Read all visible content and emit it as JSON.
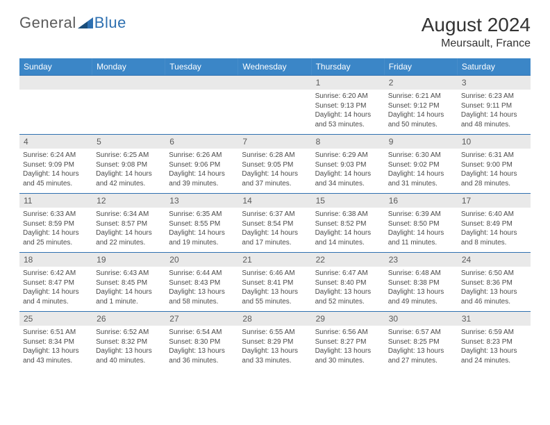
{
  "logo": {
    "general": "General",
    "blue": "Blue"
  },
  "title": "August 2024",
  "location": "Meursault, France",
  "colors": {
    "header_bg": "#3b86c7",
    "header_text": "#ffffff",
    "daynum_bg": "#e9e9e9",
    "daynum_text": "#5a5a5a",
    "border": "#2d6fb0",
    "body_text": "#4a4a4a",
    "logo_general": "#5a5a5a",
    "logo_blue": "#2d6fb0"
  },
  "weekdays": [
    "Sunday",
    "Monday",
    "Tuesday",
    "Wednesday",
    "Thursday",
    "Friday",
    "Saturday"
  ],
  "cells": [
    {
      "day": "",
      "sunrise": "",
      "sunset": "",
      "daylight": ""
    },
    {
      "day": "",
      "sunrise": "",
      "sunset": "",
      "daylight": ""
    },
    {
      "day": "",
      "sunrise": "",
      "sunset": "",
      "daylight": ""
    },
    {
      "day": "",
      "sunrise": "",
      "sunset": "",
      "daylight": ""
    },
    {
      "day": "1",
      "sunrise": "Sunrise: 6:20 AM",
      "sunset": "Sunset: 9:13 PM",
      "daylight": "Daylight: 14 hours and 53 minutes."
    },
    {
      "day": "2",
      "sunrise": "Sunrise: 6:21 AM",
      "sunset": "Sunset: 9:12 PM",
      "daylight": "Daylight: 14 hours and 50 minutes."
    },
    {
      "day": "3",
      "sunrise": "Sunrise: 6:23 AM",
      "sunset": "Sunset: 9:11 PM",
      "daylight": "Daylight: 14 hours and 48 minutes."
    },
    {
      "day": "4",
      "sunrise": "Sunrise: 6:24 AM",
      "sunset": "Sunset: 9:09 PM",
      "daylight": "Daylight: 14 hours and 45 minutes."
    },
    {
      "day": "5",
      "sunrise": "Sunrise: 6:25 AM",
      "sunset": "Sunset: 9:08 PM",
      "daylight": "Daylight: 14 hours and 42 minutes."
    },
    {
      "day": "6",
      "sunrise": "Sunrise: 6:26 AM",
      "sunset": "Sunset: 9:06 PM",
      "daylight": "Daylight: 14 hours and 39 minutes."
    },
    {
      "day": "7",
      "sunrise": "Sunrise: 6:28 AM",
      "sunset": "Sunset: 9:05 PM",
      "daylight": "Daylight: 14 hours and 37 minutes."
    },
    {
      "day": "8",
      "sunrise": "Sunrise: 6:29 AM",
      "sunset": "Sunset: 9:03 PM",
      "daylight": "Daylight: 14 hours and 34 minutes."
    },
    {
      "day": "9",
      "sunrise": "Sunrise: 6:30 AM",
      "sunset": "Sunset: 9:02 PM",
      "daylight": "Daylight: 14 hours and 31 minutes."
    },
    {
      "day": "10",
      "sunrise": "Sunrise: 6:31 AM",
      "sunset": "Sunset: 9:00 PM",
      "daylight": "Daylight: 14 hours and 28 minutes."
    },
    {
      "day": "11",
      "sunrise": "Sunrise: 6:33 AM",
      "sunset": "Sunset: 8:59 PM",
      "daylight": "Daylight: 14 hours and 25 minutes."
    },
    {
      "day": "12",
      "sunrise": "Sunrise: 6:34 AM",
      "sunset": "Sunset: 8:57 PM",
      "daylight": "Daylight: 14 hours and 22 minutes."
    },
    {
      "day": "13",
      "sunrise": "Sunrise: 6:35 AM",
      "sunset": "Sunset: 8:55 PM",
      "daylight": "Daylight: 14 hours and 19 minutes."
    },
    {
      "day": "14",
      "sunrise": "Sunrise: 6:37 AM",
      "sunset": "Sunset: 8:54 PM",
      "daylight": "Daylight: 14 hours and 17 minutes."
    },
    {
      "day": "15",
      "sunrise": "Sunrise: 6:38 AM",
      "sunset": "Sunset: 8:52 PM",
      "daylight": "Daylight: 14 hours and 14 minutes."
    },
    {
      "day": "16",
      "sunrise": "Sunrise: 6:39 AM",
      "sunset": "Sunset: 8:50 PM",
      "daylight": "Daylight: 14 hours and 11 minutes."
    },
    {
      "day": "17",
      "sunrise": "Sunrise: 6:40 AM",
      "sunset": "Sunset: 8:49 PM",
      "daylight": "Daylight: 14 hours and 8 minutes."
    },
    {
      "day": "18",
      "sunrise": "Sunrise: 6:42 AM",
      "sunset": "Sunset: 8:47 PM",
      "daylight": "Daylight: 14 hours and 4 minutes."
    },
    {
      "day": "19",
      "sunrise": "Sunrise: 6:43 AM",
      "sunset": "Sunset: 8:45 PM",
      "daylight": "Daylight: 14 hours and 1 minute."
    },
    {
      "day": "20",
      "sunrise": "Sunrise: 6:44 AM",
      "sunset": "Sunset: 8:43 PM",
      "daylight": "Daylight: 13 hours and 58 minutes."
    },
    {
      "day": "21",
      "sunrise": "Sunrise: 6:46 AM",
      "sunset": "Sunset: 8:41 PM",
      "daylight": "Daylight: 13 hours and 55 minutes."
    },
    {
      "day": "22",
      "sunrise": "Sunrise: 6:47 AM",
      "sunset": "Sunset: 8:40 PM",
      "daylight": "Daylight: 13 hours and 52 minutes."
    },
    {
      "day": "23",
      "sunrise": "Sunrise: 6:48 AM",
      "sunset": "Sunset: 8:38 PM",
      "daylight": "Daylight: 13 hours and 49 minutes."
    },
    {
      "day": "24",
      "sunrise": "Sunrise: 6:50 AM",
      "sunset": "Sunset: 8:36 PM",
      "daylight": "Daylight: 13 hours and 46 minutes."
    },
    {
      "day": "25",
      "sunrise": "Sunrise: 6:51 AM",
      "sunset": "Sunset: 8:34 PM",
      "daylight": "Daylight: 13 hours and 43 minutes."
    },
    {
      "day": "26",
      "sunrise": "Sunrise: 6:52 AM",
      "sunset": "Sunset: 8:32 PM",
      "daylight": "Daylight: 13 hours and 40 minutes."
    },
    {
      "day": "27",
      "sunrise": "Sunrise: 6:54 AM",
      "sunset": "Sunset: 8:30 PM",
      "daylight": "Daylight: 13 hours and 36 minutes."
    },
    {
      "day": "28",
      "sunrise": "Sunrise: 6:55 AM",
      "sunset": "Sunset: 8:29 PM",
      "daylight": "Daylight: 13 hours and 33 minutes."
    },
    {
      "day": "29",
      "sunrise": "Sunrise: 6:56 AM",
      "sunset": "Sunset: 8:27 PM",
      "daylight": "Daylight: 13 hours and 30 minutes."
    },
    {
      "day": "30",
      "sunrise": "Sunrise: 6:57 AM",
      "sunset": "Sunset: 8:25 PM",
      "daylight": "Daylight: 13 hours and 27 minutes."
    },
    {
      "day": "31",
      "sunrise": "Sunrise: 6:59 AM",
      "sunset": "Sunset: 8:23 PM",
      "daylight": "Daylight: 13 hours and 24 minutes."
    }
  ]
}
